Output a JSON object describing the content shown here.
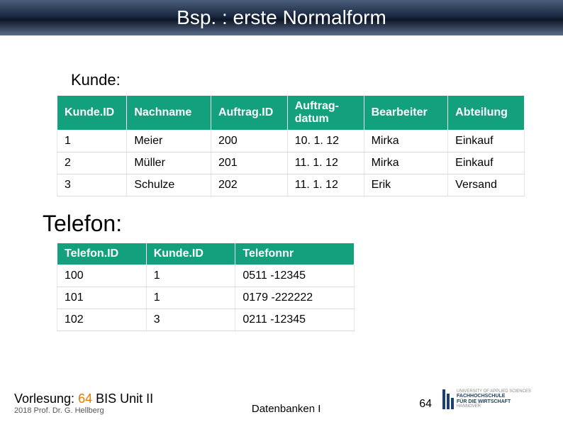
{
  "title": "Bsp. : erste Normalform",
  "table1": {
    "label": "Kunde:",
    "columns": [
      "Kunde.ID",
      "Nachname",
      "Auftrag.ID",
      "Auftrag-datum",
      "Bearbeiter",
      "Abteilung"
    ],
    "rows": [
      [
        "1",
        "Meier",
        "200",
        "10. 1. 12",
        "Mirka",
        "Einkauf"
      ],
      [
        "2",
        "Müller",
        "201",
        "11. 1. 12",
        "Mirka",
        "Einkauf"
      ],
      [
        "3",
        "Schulze",
        "202",
        "11. 1. 12",
        "Erik",
        "Versand"
      ]
    ],
    "header_bg": "#12a481",
    "header_fg": "#ffffff"
  },
  "table2": {
    "label": "Telefon:",
    "columns": [
      "Telefon.ID",
      "Kunde.ID",
      "Telefonnr"
    ],
    "rows": [
      [
        "100",
        "1",
        "0511 -12345"
      ],
      [
        "101",
        "1",
        "0179 -222222"
      ],
      [
        "102",
        "3",
        "0211 -12345"
      ]
    ],
    "header_bg": "#12a481",
    "header_fg": "#ffffff"
  },
  "footer": {
    "lecture_prefix": "Vorlesung: ",
    "lecture_num": "64",
    "lecture_title": " BIS Unit II",
    "prof": "2018 Prof. Dr. G. Hellberg",
    "center": "Datenbanken I",
    "page": "64",
    "logo_line1": "FACHHOCHSCHULE",
    "logo_line2": "FÜR DIE WIRTSCHAFT",
    "logo_line3": "HANNOVER",
    "logo_top": "UNIVERSITY OF APPLIED SCIENCES"
  },
  "colors": {
    "title_gradient_top": "#4a5d7a",
    "title_gradient_mid": "#0d1626",
    "accent": "#e07b00"
  }
}
